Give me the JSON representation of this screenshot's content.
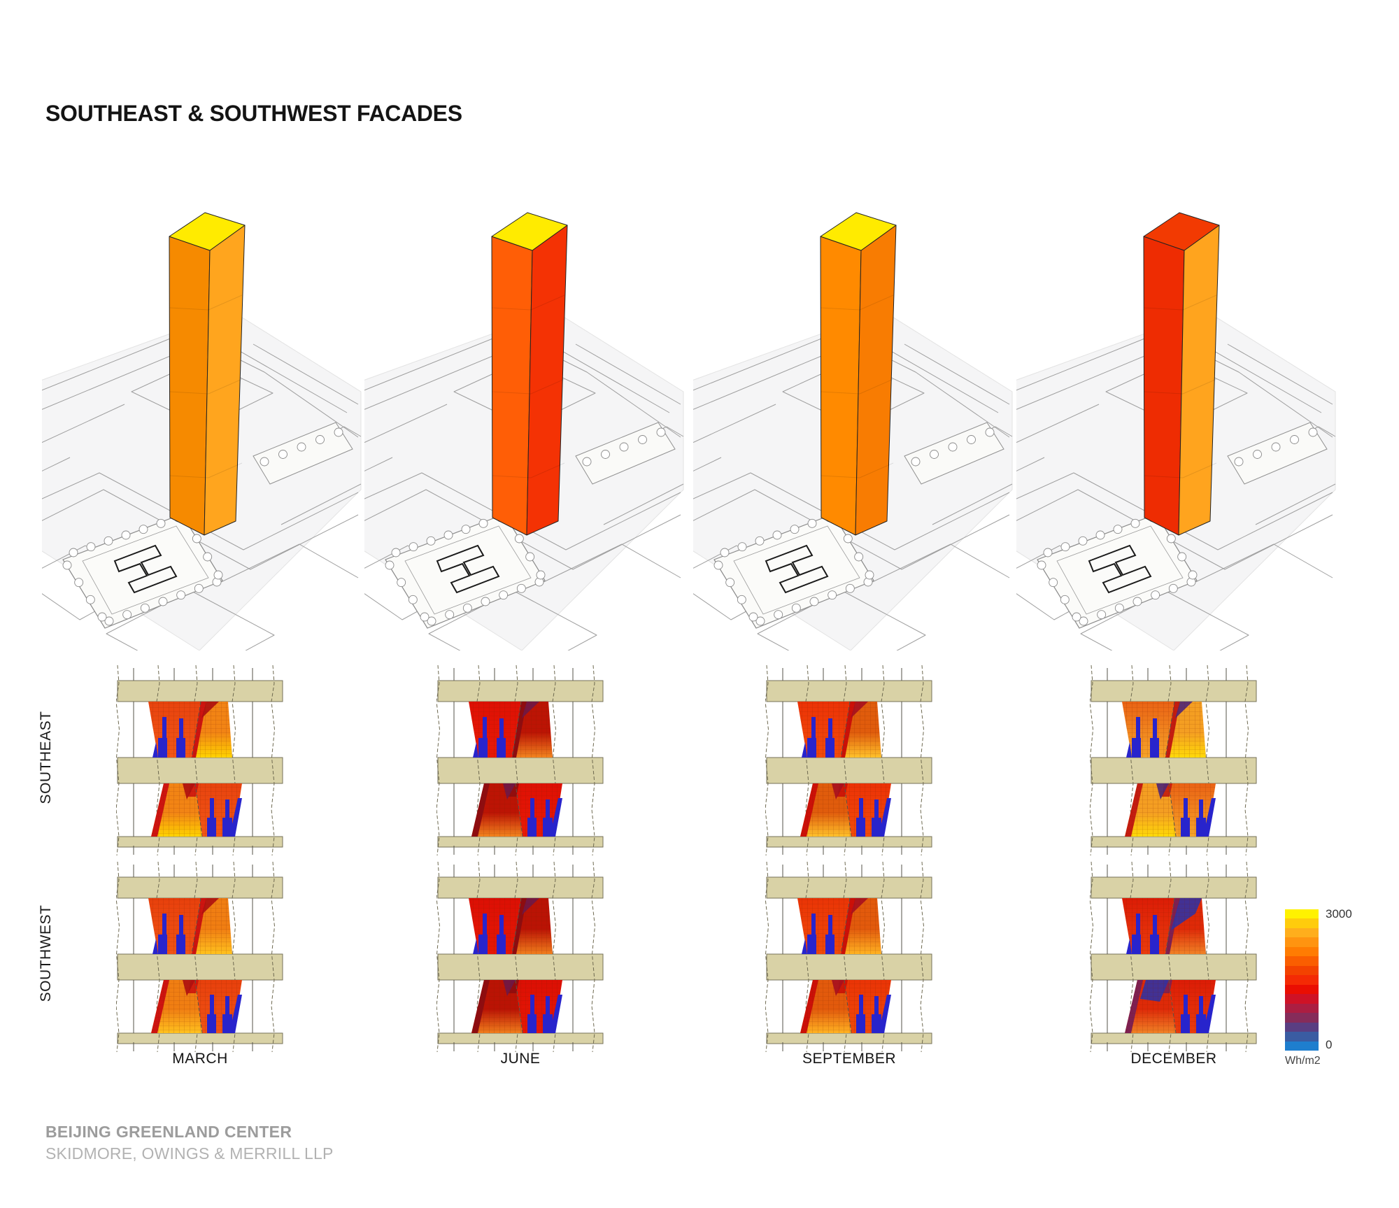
{
  "title": "SOUTHEAST & SOUTHWEST FACADES",
  "months": [
    "MARCH",
    "JUNE",
    "SEPTEMBER",
    "DECEMBER"
  ],
  "facade_rows": [
    "SOUTHEAST",
    "SOUTHWEST"
  ],
  "legend": {
    "max_label": "3000",
    "min_label": "0",
    "unit": "Wh/m2",
    "colors": [
      "#FFF200",
      "#FFCC0C",
      "#FFAE1C",
      "#FF9410",
      "#FF7C02",
      "#FA5E00",
      "#F34200",
      "#F42A04",
      "#EA0E02",
      "#CF1226",
      "#AC1E42",
      "#862C5A",
      "#5A3E82",
      "#3A5CA2",
      "#1E7ECE"
    ]
  },
  "towers": [
    {
      "month": "MARCH",
      "top": "#FFEB00",
      "left": "#F68A00",
      "right": "#FFA51E"
    },
    {
      "month": "JUNE",
      "top": "#FFEB00",
      "left": "#FF5E06",
      "right": "#F43204"
    },
    {
      "month": "SEPTEMBER",
      "top": "#FFEB00",
      "left": "#FF8A00",
      "right": "#F87C02"
    },
    {
      "month": "DECEMBER",
      "top": "#F23A02",
      "left": "#EE2C02",
      "right": "#FFA41E"
    }
  ],
  "facades": [
    {
      "row": "SOUTHEAST",
      "month": "MARCH",
      "hot_top": "#E8430E",
      "hot_bottom": "#F25716",
      "grad_top": "#F28414",
      "grad_bottom": "#FFD400",
      "streak": "#CE1410",
      "tip": "#B01010",
      "tip_size": "small"
    },
    {
      "row": "SOUTHEAST",
      "month": "JUNE",
      "hot_top": "#DE1004",
      "hot_bottom": "#E81A06",
      "grad_top": "#BC1404",
      "grad_bottom": "#F2841E",
      "streak": "#8E0C10",
      "tip": "#6E1848",
      "tip_size": "small"
    },
    {
      "row": "SOUTHEAST",
      "month": "SEPTEMBER",
      "hot_top": "#EC3206",
      "hot_bottom": "#F24C0A",
      "grad_top": "#E05C0C",
      "grad_bottom": "#FFC22A",
      "streak": "#CC1008",
      "tip": "#A81020",
      "tip_size": "small"
    },
    {
      "row": "SOUTHEAST",
      "month": "DECEMBER",
      "hot_top": "#EA6214",
      "hot_bottom": "#F6A428",
      "grad_top": "#F49E22",
      "grad_bottom": "#FFDA08",
      "streak": "#C41C10",
      "tip": "#4E2878",
      "tip_size": "small"
    },
    {
      "row": "SOUTHWEST",
      "month": "MARCH",
      "hot_top": "#E8400C",
      "hot_bottom": "#F05414",
      "grad_top": "#F07E12",
      "grad_bottom": "#FFC21E",
      "streak": "#CE1410",
      "tip": "#B01010",
      "tip_size": "small"
    },
    {
      "row": "SOUTHWEST",
      "month": "JUNE",
      "hot_top": "#DC0F04",
      "hot_bottom": "#E61804",
      "grad_top": "#BA1304",
      "grad_bottom": "#F07E1C",
      "streak": "#8E0C10",
      "tip": "#6E1848",
      "tip_size": "small"
    },
    {
      "row": "SOUTHWEST",
      "month": "SEPTEMBER",
      "hot_top": "#EA3406",
      "hot_bottom": "#F04A08",
      "grad_top": "#E25A0C",
      "grad_bottom": "#FFB322",
      "streak": "#CC1008",
      "tip": "#A81020",
      "tip_size": "small"
    },
    {
      "row": "SOUTHWEST",
      "month": "DECEMBER",
      "hot_top": "#DC1C06",
      "hot_bottom": "#EA3C0C",
      "grad_top": "#DE2A08",
      "grad_bottom": "#F08226",
      "streak": "#7E2052",
      "tip": "#3432A0",
      "tip_size": "large"
    }
  ],
  "palette": {
    "blue": "#2824CC",
    "band": "#D9D2A6",
    "band_edge": "#76715A",
    "line": "#55534A",
    "grid": "#7A1C00"
  },
  "footer": {
    "project": "BEIJING GREENLAND CENTER",
    "firm": "SKIDMORE, OWINGS & MERRILL LLP"
  }
}
